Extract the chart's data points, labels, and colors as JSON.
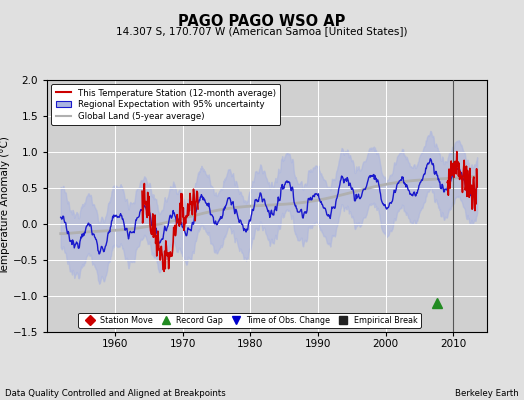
{
  "title": "PAGO PAGO WSO AP",
  "subtitle": "14.307 S, 170.707 W (American Samoa [United States])",
  "ylabel": "Temperature Anomaly (°C)",
  "xlim": [
    1950,
    2015
  ],
  "ylim": [
    -1.5,
    2.0
  ],
  "yticks": [
    -1.5,
    -1.0,
    -0.5,
    0.0,
    0.5,
    1.0,
    1.5,
    2.0
  ],
  "xticks": [
    1960,
    1970,
    1980,
    1990,
    2000,
    2010
  ],
  "background_color": "#e0e0e0",
  "plot_bg_color": "#d0d0d0",
  "grid_color": "#ffffff",
  "region_fill_color": "#aab4e0",
  "region_fill_alpha": 0.55,
  "region_line_color": "#1a1acc",
  "station_line_color": "#cc0000",
  "global_line_color": "#b0b0b0",
  "empirical_break_x": 2010.0,
  "bottom_note_left": "Data Quality Controlled and Aligned at Breakpoints",
  "bottom_note_right": "Berkeley Earth",
  "record_gap_x": 2007.5,
  "record_gap_y": -1.1,
  "legend_items": [
    {
      "label": "This Temperature Station (12-month average)",
      "color": "#cc0000"
    },
    {
      "label": "Regional Expectation with 95% uncertainty",
      "color": "#1a1acc"
    },
    {
      "label": "Global Land (5-year average)",
      "color": "#b0b0b0"
    }
  ],
  "marker_legend": [
    {
      "label": "Station Move",
      "color": "#cc0000",
      "marker": "D"
    },
    {
      "label": "Record Gap",
      "color": "#228B22",
      "marker": "^"
    },
    {
      "label": "Time of Obs. Change",
      "color": "#0000cc",
      "marker": "v"
    },
    {
      "label": "Empirical Break",
      "color": "#222222",
      "marker": "s"
    }
  ]
}
